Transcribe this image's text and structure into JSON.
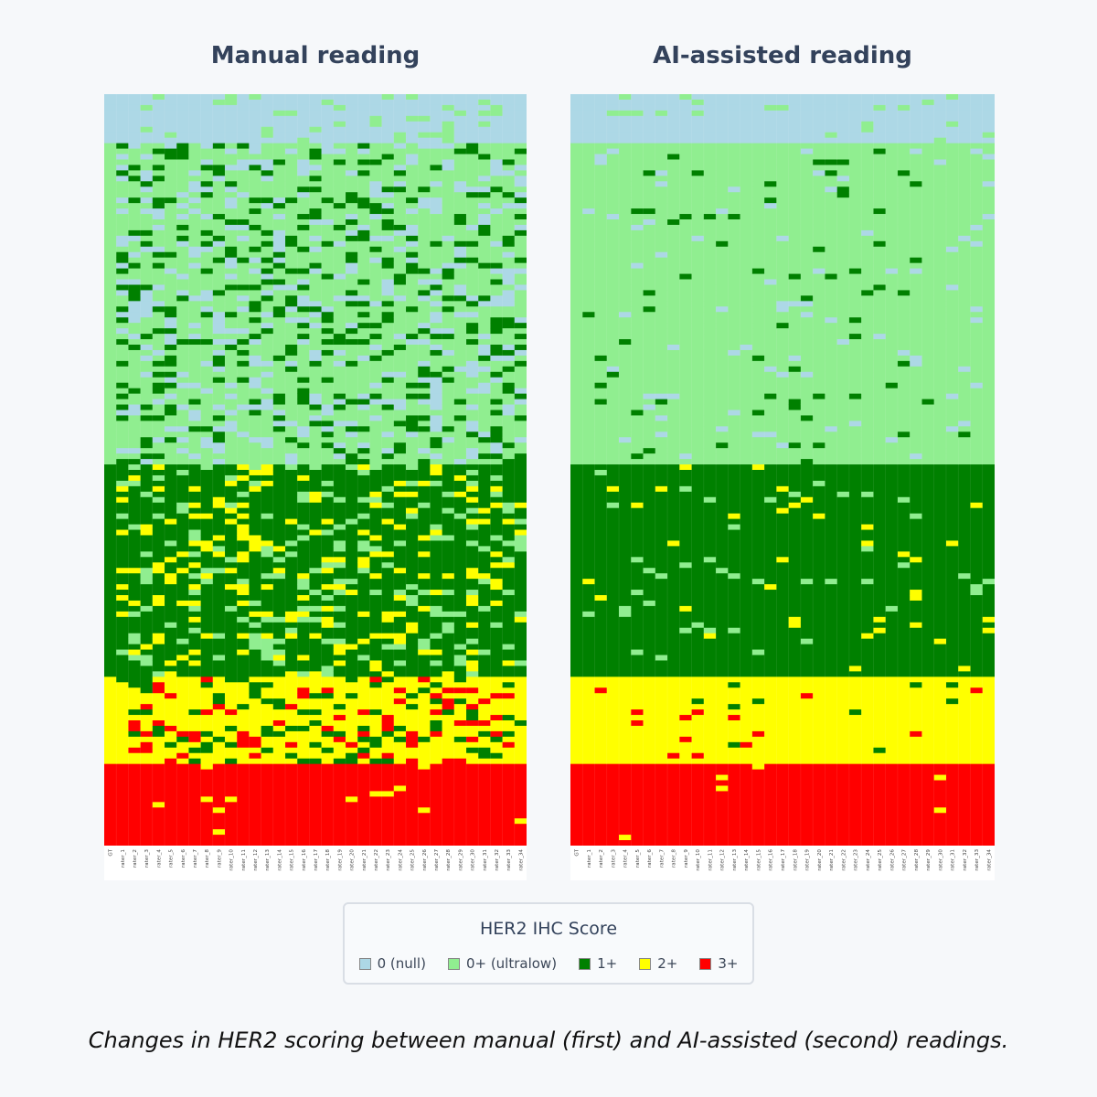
{
  "chart_data": [
    {
      "type": "heatmap",
      "title": "Manual reading",
      "columns": [
        "GT",
        "rater_1",
        "rater_2",
        "rater_3",
        "rater_4",
        "rater_5",
        "rater_6",
        "rater_7",
        "rater_8",
        "rater_9",
        "rater_10",
        "rater_11",
        "rater_12",
        "rater_13",
        "rater_14",
        "rater_15",
        "rater_16",
        "rater_17",
        "rater_18",
        "rater_19",
        "rater_20",
        "rater_21",
        "rater_22",
        "rater_23",
        "rater_24",
        "rater_25",
        "rater_26",
        "rater_27",
        "rater_28",
        "rater_29",
        "rater_30",
        "rater_31",
        "rater_32",
        "rater_33",
        "rater_34"
      ],
      "gt_class_counts": {
        "0": 9,
        "0+": 59,
        "1+": 39,
        "2+": 16,
        "3+": 15
      },
      "ground_truth_agreement_by_class": {
        "0": 0.75,
        "0+": 0.62,
        "1+": 0.72,
        "2+": 0.72,
        "3+": 0.93
      }
    },
    {
      "type": "heatmap",
      "title": "AI-assisted reading",
      "columns": [
        "GT",
        "rater_1",
        "rater_2",
        "rater_3",
        "rater_4",
        "rater_5",
        "rater_6",
        "rater_7",
        "rater_8",
        "rater_9",
        "rater_10",
        "rater_11",
        "rater_12",
        "rater_13",
        "rater_14",
        "rater_15",
        "rater_16",
        "rater_17",
        "rater_18",
        "rater_19",
        "rater_20",
        "rater_21",
        "rater_22",
        "rater_23",
        "rater_24",
        "rater_25",
        "rater_26",
        "rater_27",
        "rater_28",
        "rater_29",
        "rater_30",
        "rater_31",
        "rater_32",
        "rater_33",
        "rater_34"
      ],
      "gt_class_counts": {
        "0": 9,
        "0+": 59,
        "1+": 39,
        "2+": 16,
        "3+": 15
      },
      "ground_truth_agreement_by_class": {
        "0": 0.88,
        "0+": 0.93,
        "1+": 0.94,
        "2+": 0.95,
        "3+": 0.99
      }
    }
  ],
  "legend": {
    "title": "HER2 IHC Score",
    "items": [
      {
        "label": "0 (null)",
        "color": "#add8e6"
      },
      {
        "label": "0+ (ultralow)",
        "color": "#90ee90"
      },
      {
        "label": "1+",
        "color": "#008000"
      },
      {
        "label": "2+",
        "color": "#ffff00"
      },
      {
        "label": "3+",
        "color": "#ff0000"
      }
    ]
  },
  "caption": "Changes in HER2 scoring between manual (first) and AI-assisted (second) readings."
}
